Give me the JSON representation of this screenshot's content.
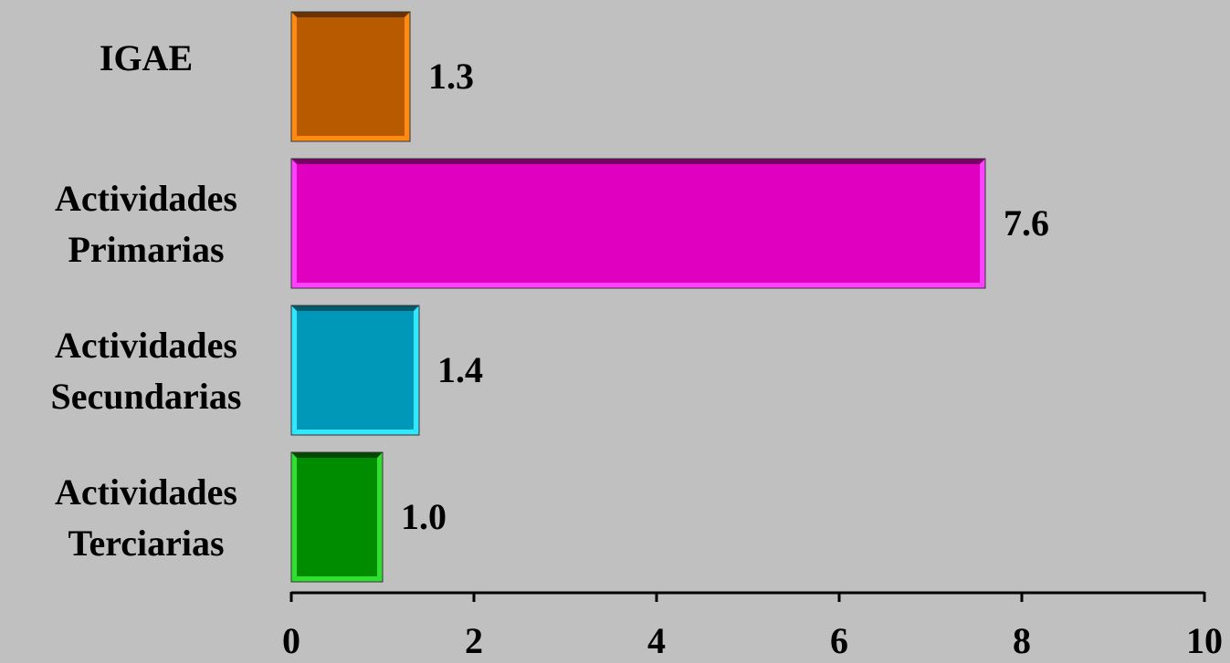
{
  "chart_data": {
    "type": "bar",
    "orientation": "horizontal",
    "categories": [
      [
        "IGAE"
      ],
      [
        "Actividades",
        "Primarias"
      ],
      [
        "Actividades",
        "Secundarias"
      ],
      [
        "Actividades",
        "Terciarias"
      ]
    ],
    "values": [
      1.3,
      7.6,
      1.4,
      1.0
    ],
    "value_labels": [
      "1.3",
      "7.6",
      "1.4",
      "1.0"
    ],
    "colors": [
      "#b85a00",
      "#e000c0",
      "#0098b8",
      "#008c00"
    ],
    "highlight_colors": [
      "#ff8c10",
      "#ff40ff",
      "#30e8ff",
      "#30e030"
    ],
    "shadow_colors": [
      "#6a3200",
      "#7a0068",
      "#005a6c",
      "#004a00"
    ],
    "xlim": [
      0,
      10
    ],
    "xticks": [
      "0",
      "2",
      "4",
      "6",
      "8",
      "10"
    ],
    "grid": false,
    "background": "#c0c0c0"
  }
}
